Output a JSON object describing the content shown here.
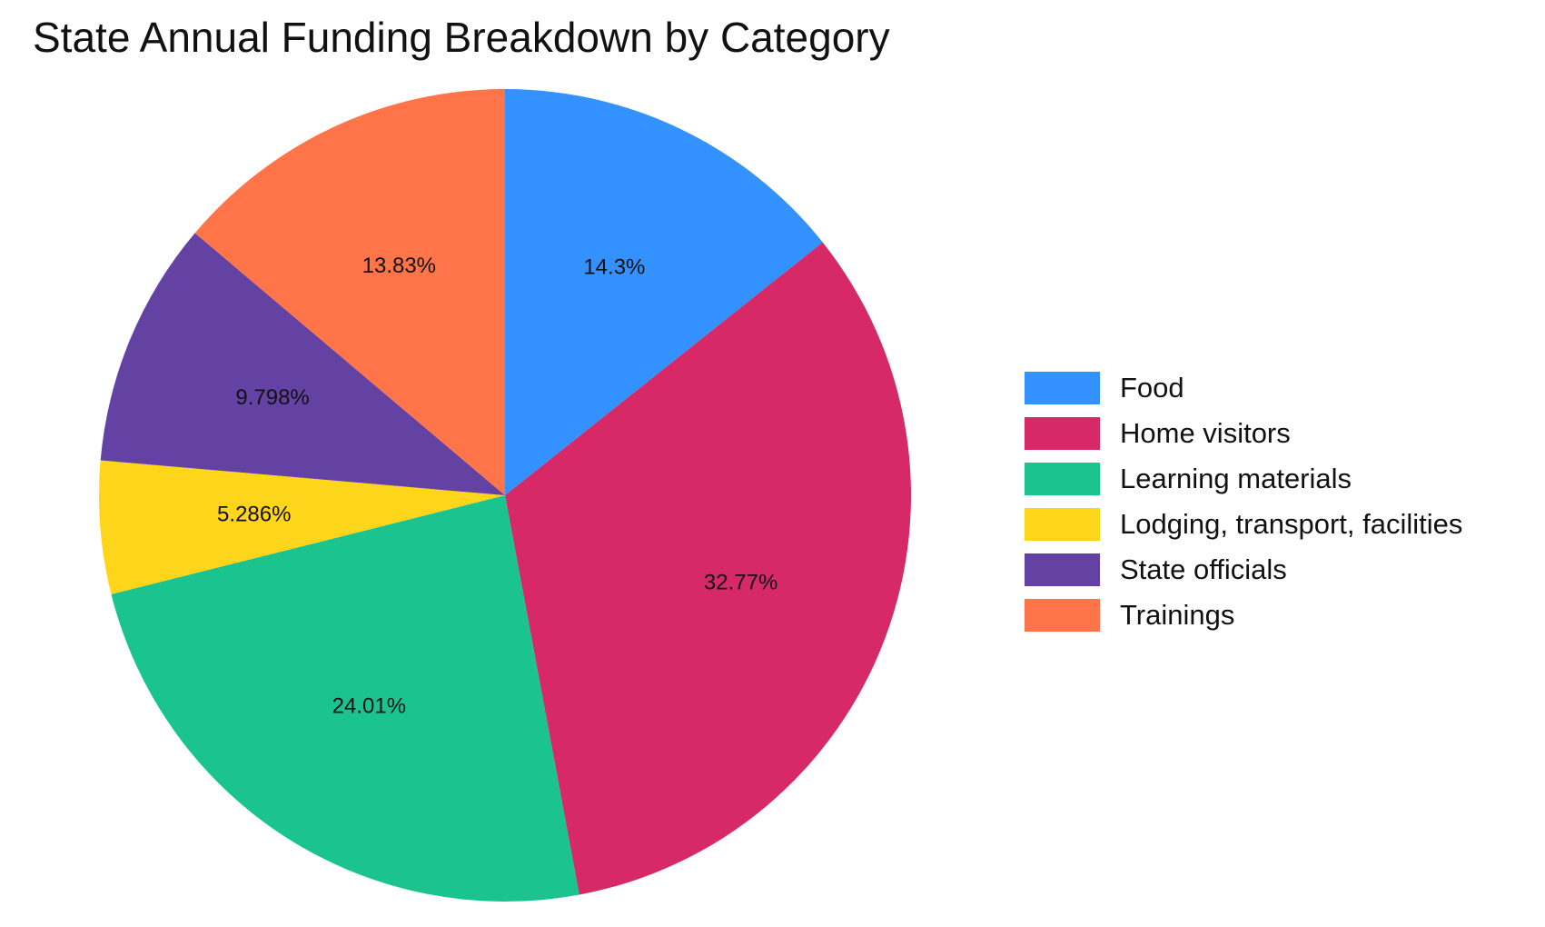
{
  "chart_data": {
    "type": "pie",
    "title": "State Annual Funding Breakdown by Category",
    "start_angle_deg": 0,
    "direction": "clockwise",
    "legend_position": "right",
    "slices": [
      {
        "label": "Food",
        "value": 14.3,
        "display": "14.3%",
        "color": "#3392FF"
      },
      {
        "label": "Home visitors",
        "value": 32.77,
        "display": "32.77%",
        "color": "#D62966"
      },
      {
        "label": "Learning materials",
        "value": 24.01,
        "display": "24.01%",
        "color": "#1BC48F"
      },
      {
        "label": "Lodging, transport, facilities",
        "value": 5.286,
        "display": "5.286%",
        "color": "#FDD61B"
      },
      {
        "label": "State officials",
        "value": 9.798,
        "display": "9.798%",
        "color": "#6442A4"
      },
      {
        "label": "Trainings",
        "value": 13.83,
        "display": "13.83%",
        "color": "#FF7549"
      }
    ]
  }
}
